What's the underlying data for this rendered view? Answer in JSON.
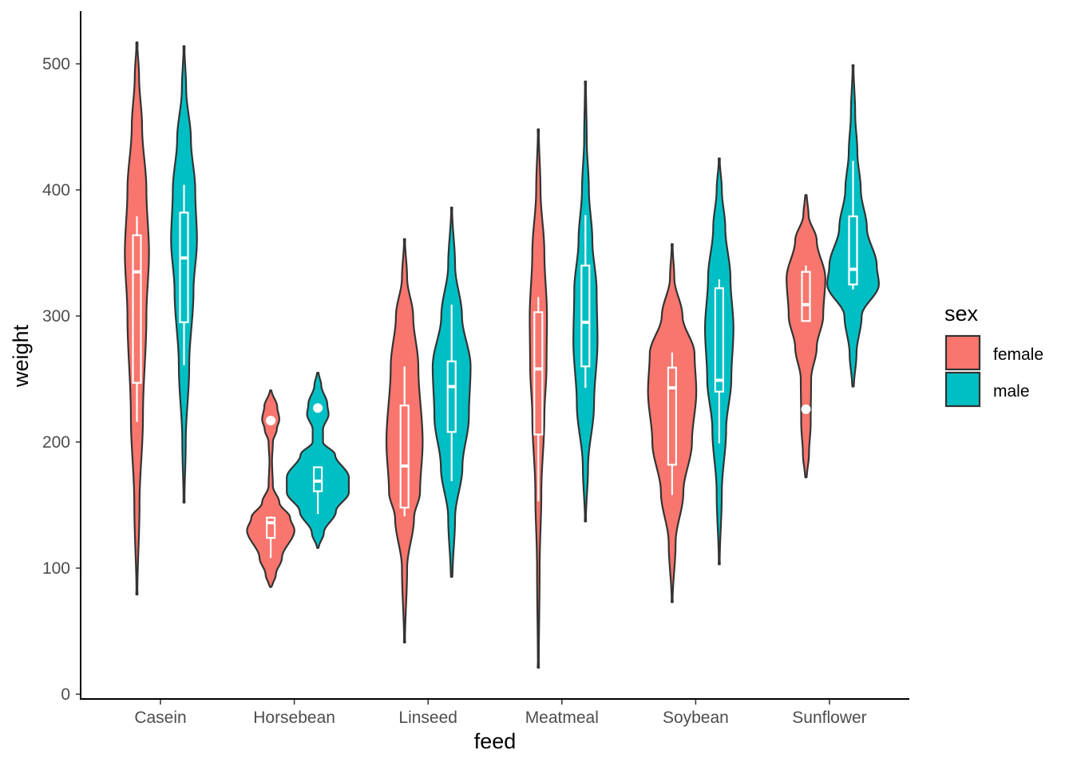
{
  "chart_data": {
    "type": "violin",
    "title": "",
    "xlabel": "feed",
    "ylabel": "weight",
    "ylim": [
      0,
      540
    ],
    "yticks": [
      0,
      100,
      200,
      300,
      400,
      500
    ],
    "grid": false,
    "legend": {
      "title": "sex",
      "placement": "right"
    },
    "categories": [
      "Casein",
      "Horsebean",
      "Linseed",
      "Meatmeal",
      "Soybean",
      "Sunflower"
    ],
    "series": [
      {
        "name": "female",
        "color": "#F8766D",
        "violins": [
          {
            "min": 79,
            "max": 517,
            "profile": [
              [
                79,
                0.01
              ],
              [
                150,
                0.06
              ],
              [
                220,
                0.14
              ],
              [
                300,
                0.22
              ],
              [
                350,
                0.28
              ],
              [
                400,
                0.22
              ],
              [
                450,
                0.12
              ],
              [
                490,
                0.05
              ],
              [
                517,
                0.01
              ]
            ],
            "box": {
              "q1": 247,
              "median": 335,
              "q3": 364,
              "lower": 216,
              "upper": 379
            },
            "outliers": []
          },
          {
            "min": 85,
            "max": 241,
            "profile": [
              [
                85,
                0.03
              ],
              [
                95,
                0.12
              ],
              [
                108,
                0.26
              ],
              [
                130,
                0.55
              ],
              [
                140,
                0.45
              ],
              [
                152,
                0.2
              ],
              [
                165,
                0.05
              ],
              [
                185,
                0.03
              ],
              [
                200,
                0.05
              ],
              [
                210,
                0.14
              ],
              [
                218,
                0.2
              ],
              [
                228,
                0.15
              ],
              [
                241,
                0.02
              ]
            ],
            "box": {
              "q1": 124,
              "median": 136,
              "q3": 140,
              "lower": 108,
              "upper": 141
            },
            "outliers": [
              217
            ]
          },
          {
            "min": 41,
            "max": 361,
            "profile": [
              [
                41,
                0.01
              ],
              [
                100,
                0.06
              ],
              [
                140,
                0.22
              ],
              [
                160,
                0.36
              ],
              [
                200,
                0.42
              ],
              [
                260,
                0.32
              ],
              [
                300,
                0.2
              ],
              [
                330,
                0.06
              ],
              [
                361,
                0.01
              ]
            ],
            "box": {
              "q1": 148,
              "median": 181,
              "q3": 229,
              "lower": 141,
              "upper": 260
            },
            "outliers": []
          },
          {
            "min": 21,
            "max": 448,
            "profile": [
              [
                21,
                0.01
              ],
              [
                100,
                0.03
              ],
              [
                160,
                0.07
              ],
              [
                220,
                0.14
              ],
              [
                260,
                0.19
              ],
              [
                300,
                0.2
              ],
              [
                350,
                0.14
              ],
              [
                400,
                0.05
              ],
              [
                448,
                0.01
              ]
            ],
            "box": {
              "q1": 206,
              "median": 258,
              "q3": 303,
              "lower": 153,
              "upper": 315
            },
            "outliers": []
          },
          {
            "min": 73,
            "max": 357,
            "profile": [
              [
                73,
                0.01
              ],
              [
                120,
                0.08
              ],
              [
                160,
                0.26
              ],
              [
                200,
                0.46
              ],
              [
                240,
                0.56
              ],
              [
                270,
                0.52
              ],
              [
                300,
                0.24
              ],
              [
                330,
                0.05
              ],
              [
                357,
                0.01
              ]
            ],
            "box": {
              "q1": 182,
              "median": 243,
              "q3": 259,
              "lower": 158,
              "upper": 271
            },
            "outliers": []
          },
          {
            "min": 172,
            "max": 396,
            "profile": [
              [
                172,
                0.02
              ],
              [
                190,
                0.07
              ],
              [
                215,
                0.11
              ],
              [
                250,
                0.12
              ],
              [
                275,
                0.25
              ],
              [
                300,
                0.4
              ],
              [
                330,
                0.45
              ],
              [
                360,
                0.25
              ],
              [
                380,
                0.06
              ],
              [
                396,
                0.02
              ]
            ],
            "box": {
              "q1": 296,
              "median": 309,
              "q3": 335,
              "lower": 296,
              "upper": 340
            },
            "outliers": [
              226
            ]
          }
        ]
      },
      {
        "name": "male",
        "color": "#00BFC4",
        "violins": [
          {
            "min": 152,
            "max": 514,
            "profile": [
              [
                152,
                0.01
              ],
              [
                200,
                0.04
              ],
              [
                260,
                0.12
              ],
              [
                320,
                0.22
              ],
              [
                360,
                0.3
              ],
              [
                400,
                0.26
              ],
              [
                440,
                0.16
              ],
              [
                480,
                0.05
              ],
              [
                514,
                0.01
              ]
            ],
            "box": {
              "q1": 295,
              "median": 346,
              "q3": 382,
              "lower": 261,
              "upper": 404
            },
            "outliers": []
          },
          {
            "min": 116,
            "max": 255,
            "profile": [
              [
                116,
                0.02
              ],
              [
                128,
                0.14
              ],
              [
                145,
                0.42
              ],
              [
                160,
                0.72
              ],
              [
                172,
                0.72
              ],
              [
                190,
                0.4
              ],
              [
                200,
                0.12
              ],
              [
                210,
                0.12
              ],
              [
                222,
                0.25
              ],
              [
                230,
                0.22
              ],
              [
                245,
                0.08
              ],
              [
                255,
                0.02
              ]
            ],
            "box": {
              "q1": 161,
              "median": 169,
              "q3": 180,
              "lower": 143,
              "upper": 180
            },
            "outliers": [
              227
            ]
          },
          {
            "min": 93,
            "max": 386,
            "profile": [
              [
                93,
                0.02
              ],
              [
                140,
                0.08
              ],
              [
                180,
                0.25
              ],
              [
                220,
                0.4
              ],
              [
                260,
                0.44
              ],
              [
                300,
                0.24
              ],
              [
                340,
                0.08
              ],
              [
                386,
                0.01
              ]
            ],
            "box": {
              "q1": 208,
              "median": 244,
              "q3": 264,
              "lower": 169,
              "upper": 309
            },
            "outliers": []
          },
          {
            "min": 137,
            "max": 486,
            "profile": [
              [
                137,
                0.01
              ],
              [
                180,
                0.06
              ],
              [
                230,
                0.2
              ],
              [
                280,
                0.28
              ],
              [
                320,
                0.26
              ],
              [
                360,
                0.16
              ],
              [
                400,
                0.08
              ],
              [
                440,
                0.03
              ],
              [
                486,
                0.01
              ]
            ],
            "box": {
              "q1": 260,
              "median": 295,
              "q3": 340,
              "lower": 243,
              "upper": 380
            },
            "outliers": []
          },
          {
            "min": 103,
            "max": 425,
            "profile": [
              [
                103,
                0.01
              ],
              [
                160,
                0.06
              ],
              [
                210,
                0.16
              ],
              [
                250,
                0.28
              ],
              [
                290,
                0.33
              ],
              [
                330,
                0.26
              ],
              [
                370,
                0.14
              ],
              [
                400,
                0.06
              ],
              [
                425,
                0.01
              ]
            ],
            "box": {
              "q1": 240,
              "median": 249,
              "q3": 322,
              "lower": 199,
              "upper": 329
            },
            "outliers": []
          },
          {
            "min": 244,
            "max": 499,
            "profile": [
              [
                244,
                0.02
              ],
              [
                270,
                0.08
              ],
              [
                300,
                0.2
              ],
              [
                325,
                0.6
              ],
              [
                340,
                0.55
              ],
              [
                370,
                0.32
              ],
              [
                400,
                0.18
              ],
              [
                430,
                0.1
              ],
              [
                460,
                0.05
              ],
              [
                499,
                0.01
              ]
            ],
            "box": {
              "q1": 325,
              "median": 337,
              "q3": 379,
              "lower": 321,
              "upper": 423
            },
            "outliers": []
          }
        ]
      }
    ]
  }
}
